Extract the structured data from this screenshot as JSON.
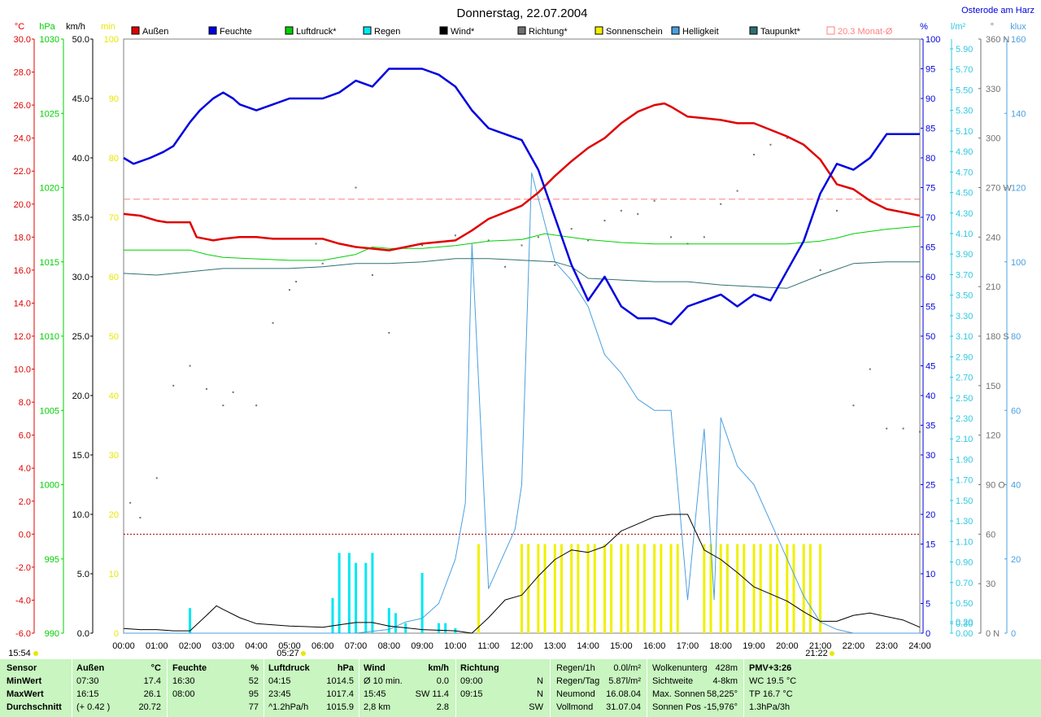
{
  "header": {
    "title": "Donnerstag, 22.07.2004",
    "location": "Osterode am Harz"
  },
  "units": {
    "temp": "°C",
    "press": "hPa",
    "wind": "km/h",
    "sun": "min",
    "hum": "%",
    "rain": "l/m²",
    "dir": "°",
    "lux": "klux"
  },
  "legend": [
    {
      "label": "Außen",
      "color": "#e00000"
    },
    {
      "label": "Feuchte",
      "color": "#0000e0"
    },
    {
      "label": "Luftdruck*",
      "color": "#00d000"
    },
    {
      "label": "Regen",
      "color": "#00e8f0"
    },
    {
      "label": "Wind*",
      "color": "#000000"
    },
    {
      "label": "Richtung*",
      "color": "#707070"
    },
    {
      "label": "Sonnenschein",
      "color": "#f0f000"
    },
    {
      "label": "Helligkeit",
      "color": "#4aa0e0"
    },
    {
      "label": "Taupunkt*",
      "color": "#307070"
    },
    {
      "label": "20.3 Monat-Ø",
      "color": "#ff8080"
    }
  ],
  "axes": {
    "temp_ticks": [
      "30.0",
      "28.0",
      "26.0",
      "24.0",
      "22.0",
      "20.0",
      "18.0",
      "16.0",
      "14.0",
      "12.0",
      "10.0",
      "8.0",
      "6.0",
      "4.0",
      "2.0",
      "0.0",
      "-2.0",
      "-4.0",
      "-6.0"
    ],
    "press_ticks": [
      "1030",
      "1025",
      "1020",
      "1015",
      "1010",
      "1005",
      "1000",
      "995",
      "990"
    ],
    "wind_ticks": [
      "50.0",
      "45.0",
      "40.0",
      "35.0",
      "30.0",
      "25.0",
      "20.0",
      "15.0",
      "10.0",
      "5.0",
      "0.0"
    ],
    "sun_ticks": [
      "100",
      "90",
      "80",
      "70",
      "60",
      "50",
      "40",
      "30",
      "20",
      "10",
      "0"
    ],
    "hum_ticks": [
      "100",
      "95",
      "90",
      "85",
      "80",
      "75",
      "70",
      "65",
      "60",
      "55",
      "50",
      "45",
      "40",
      "35",
      "30",
      "25",
      "20",
      "15",
      "10",
      "5",
      "0"
    ],
    "rain_ticks": [
      "5.90",
      "5.70",
      "5.50",
      "5.30",
      "5.10",
      "4.90",
      "4.70",
      "4.50",
      "4.30",
      "4.10",
      "3.90",
      "3.70",
      "3.50",
      "3.30",
      "3.10",
      "2.90",
      "2.70",
      "2.50",
      "2.30",
      "2.10",
      "1.90",
      "1.70",
      "1.50",
      "1.30",
      "1.10",
      "0.90",
      "0.70",
      "0.50",
      "0.30",
      "0.20",
      "0.00"
    ],
    "dir_ticks": [
      "360 N",
      "330",
      "300",
      "270 W",
      "240",
      "210",
      "180 S",
      "150",
      "120",
      "90 O",
      "60",
      "30",
      "0 N"
    ],
    "lux_ticks": [
      "160",
      "140",
      "120",
      "100",
      "80",
      "60",
      "40",
      "20",
      "0"
    ],
    "time_ticks": [
      "00:00",
      "01:00",
      "02:00",
      "03:00",
      "04:00",
      "05:00",
      "06:00",
      "07:00",
      "08:00",
      "09:00",
      "10:00",
      "11:00",
      "12:00",
      "13:00",
      "14:00",
      "15:00",
      "16:00",
      "17:00",
      "18:00",
      "19:00",
      "20:00",
      "21:00",
      "22:00",
      "23:00",
      "24:00"
    ]
  },
  "markers": {
    "sunrise": "05:27",
    "sunset": "21:22",
    "now": "15:54"
  },
  "chart_data": {
    "type": "line",
    "title": "Donnerstag, 22.07.2004",
    "x_unit": "hours",
    "monthly_average_temp": 20.3,
    "series": [
      {
        "name": "Außen",
        "unit": "°C",
        "x": [
          0,
          0.5,
          1,
          1.3,
          2,
          2.2,
          2.7,
          3,
          3.5,
          4,
          4.5,
          5,
          6,
          6.5,
          7,
          7.5,
          8,
          8.5,
          9,
          9.5,
          10,
          10.5,
          11,
          11.5,
          12,
          12.5,
          13,
          13.5,
          14,
          14.5,
          15,
          15.5,
          16,
          16.3,
          16.5,
          17,
          17.5,
          18,
          18.5,
          19,
          19.5,
          20,
          20.5,
          21,
          21.5,
          22,
          22.5,
          23,
          23.5,
          24
        ],
        "y": [
          19.4,
          19.3,
          19.0,
          18.9,
          18.9,
          18.0,
          17.8,
          17.9,
          18.0,
          18.0,
          17.9,
          17.9,
          17.9,
          17.6,
          17.4,
          17.3,
          17.2,
          17.4,
          17.6,
          17.7,
          17.8,
          18.4,
          19.1,
          19.5,
          19.9,
          20.7,
          21.7,
          22.6,
          23.4,
          24.0,
          24.9,
          25.6,
          26.0,
          26.1,
          25.9,
          25.3,
          25.2,
          25.1,
          24.9,
          24.9,
          24.5,
          24.1,
          23.6,
          22.7,
          21.2,
          20.9,
          20.2,
          19.7,
          19.5,
          19.3
        ]
      },
      {
        "name": "Feuchte",
        "unit": "%",
        "x": [
          0,
          0.3,
          0.8,
          1.2,
          1.5,
          2,
          2.3,
          2.7,
          3,
          3.3,
          3.5,
          4,
          4.5,
          5,
          5.5,
          6,
          6.5,
          7,
          7.5,
          8,
          8.5,
          9,
          9.5,
          10,
          10.5,
          11,
          11.5,
          12,
          12.5,
          13,
          13.5,
          14,
          14.5,
          15,
          15.5,
          16,
          16.5,
          17,
          17.5,
          18,
          18.5,
          19,
          19.5,
          20,
          20.5,
          21,
          21.5,
          22,
          22.5,
          23,
          23.5,
          24
        ],
        "y": [
          80,
          79,
          80,
          81,
          82,
          86,
          88,
          90,
          91,
          90,
          89,
          88,
          89,
          90,
          90,
          90,
          91,
          93,
          92,
          95,
          95,
          95,
          94,
          92,
          88,
          85,
          84,
          83,
          78,
          70,
          62,
          56,
          60,
          55,
          53,
          53,
          52,
          55,
          56,
          57,
          55,
          57,
          56,
          61,
          66,
          74,
          79,
          78,
          80,
          84,
          84,
          84
        ]
      },
      {
        "name": "Luftdruck*",
        "unit": "hPa",
        "x": [
          0,
          1,
          2,
          2.5,
          3,
          4,
          5,
          6,
          7,
          7.5,
          8,
          9,
          10,
          11,
          12,
          12.7,
          13,
          14,
          15,
          16,
          17,
          18,
          19,
          20,
          21,
          21.5,
          22,
          23,
          24
        ],
        "y": [
          1015.8,
          1015.8,
          1015.8,
          1015.5,
          1015.3,
          1015.2,
          1015.1,
          1015.1,
          1015.5,
          1016.0,
          1015.9,
          1015.9,
          1016.1,
          1016.4,
          1016.5,
          1016.9,
          1016.8,
          1016.5,
          1016.3,
          1016.2,
          1016.2,
          1016.2,
          1016.2,
          1016.2,
          1016.4,
          1016.6,
          1016.9,
          1017.2,
          1017.4
        ]
      },
      {
        "name": "Taupunkt*",
        "unit": "°C",
        "x": [
          0,
          1,
          2,
          3,
          4,
          5,
          6,
          7,
          8,
          9,
          10,
          11,
          12,
          13,
          13.5,
          14,
          15,
          16,
          17,
          18,
          19,
          20,
          21,
          22,
          23,
          24
        ],
        "y": [
          15.8,
          15.7,
          15.9,
          16.1,
          16.1,
          16.1,
          16.2,
          16.4,
          16.4,
          16.5,
          16.7,
          16.7,
          16.6,
          16.5,
          16.2,
          15.5,
          15.4,
          15.3,
          15.3,
          15.1,
          15.0,
          14.9,
          15.7,
          16.4,
          16.5,
          16.5
        ]
      },
      {
        "name": "Wind*",
        "unit": "km/h",
        "x": [
          0,
          0.5,
          1,
          1.5,
          2,
          2.5,
          2.8,
          3,
          3.5,
          4,
          5,
          6,
          6.5,
          7,
          7.5,
          8,
          9,
          10,
          10.5,
          11,
          11.5,
          12,
          12.5,
          13,
          13.5,
          14,
          14.5,
          15,
          15.5,
          16,
          16.5,
          17,
          17.5,
          18,
          18.5,
          19,
          19.5,
          20,
          20.5,
          21,
          21.5,
          22,
          22.5,
          23,
          23.5,
          24
        ],
        "y": [
          0.4,
          0.3,
          0.3,
          0.2,
          0.2,
          1.5,
          2.3,
          2.0,
          1.3,
          0.8,
          0.6,
          0.5,
          0.7,
          0.9,
          0.9,
          0.6,
          0.3,
          0.2,
          0.0,
          1.3,
          2.8,
          3.2,
          4.8,
          6.2,
          7.0,
          6.8,
          7.3,
          8.6,
          9.2,
          9.8,
          10.0,
          10.0,
          7.0,
          6.2,
          5.1,
          3.9,
          3.3,
          2.7,
          1.8,
          1.0,
          1.0,
          1.5,
          1.7,
          1.4,
          1.1,
          0.5
        ]
      },
      {
        "name": "Helligkeit",
        "unit": "klux",
        "x": [
          0,
          1,
          2,
          3,
          4,
          5,
          6,
          7,
          8,
          8.5,
          9,
          9.5,
          10,
          10.3,
          10.5,
          11,
          11.3,
          11.8,
          12,
          12.3,
          13,
          13.5,
          14,
          14.5,
          15,
          15.5,
          16,
          16.5,
          17,
          17.5,
          17.8,
          18,
          18.5,
          19,
          19.5,
          20,
          20.5,
          21,
          21.5,
          22,
          23,
          24
        ],
        "y": [
          0,
          0,
          0,
          0,
          0,
          0,
          0,
          0,
          1,
          3,
          4,
          8,
          20,
          35,
          105,
          12,
          18,
          28,
          40,
          124,
          100,
          95,
          88,
          75,
          70,
          63,
          60,
          60,
          9,
          55,
          9,
          58,
          45,
          40,
          30,
          20,
          10,
          3,
          1,
          0,
          0,
          0
        ]
      },
      {
        "name": "Regen",
        "unit": "l/m²",
        "x": [
          2,
          6.3,
          6.5,
          6.8,
          7,
          7.3,
          7.5,
          8,
          8.2,
          8.5,
          9,
          9.5,
          9.7,
          10
        ],
        "y": [
          0.25,
          0.35,
          0.8,
          0.8,
          0.7,
          0.7,
          0.8,
          0.25,
          0.2,
          0.1,
          0.6,
          0.1,
          0.1,
          0.05
        ]
      },
      {
        "name": "Richtung*",
        "unit": "°",
        "x": [
          0.2,
          0.5,
          1,
          1.5,
          2,
          2.5,
          3,
          3.3,
          4,
          4.5,
          5,
          5.2,
          5.8,
          6,
          7,
          7.5,
          8,
          9,
          10,
          11,
          11.5,
          12,
          12.5,
          13,
          13.5,
          14,
          14.5,
          15,
          15.5,
          16,
          16.5,
          17,
          17.5,
          18,
          18.5,
          19,
          19.5,
          20,
          21,
          21.5,
          22,
          22.5,
          23,
          23.5,
          24
        ],
        "y": [
          79,
          70,
          94,
          150,
          162,
          148,
          138,
          146,
          138,
          188,
          208,
          213,
          236,
          224,
          270,
          217,
          182,
          235,
          241,
          238,
          222,
          235,
          240,
          223,
          245,
          238,
          250,
          256,
          254,
          262,
          240,
          236,
          240,
          260,
          268,
          290,
          296,
          300,
          220,
          256,
          138,
          160,
          124,
          124,
          122
        ]
      },
      {
        "name": "Sonnenschein",
        "unit": "min",
        "x": [
          10.7,
          12,
          12.2,
          12.5,
          12.7,
          13,
          13.2,
          13.5,
          13.7,
          14,
          14.2,
          14.5,
          14.7,
          15,
          15.2,
          15.5,
          15.7,
          16,
          16.2,
          16.5,
          16.7,
          17.5,
          17.7,
          18,
          18.2,
          18.5,
          18.7,
          19,
          19.2,
          19.5,
          19.7,
          20,
          20.2,
          20.5,
          20.7,
          21
        ],
        "y": [
          15,
          15,
          15,
          15,
          15,
          15,
          15,
          15,
          15,
          15,
          15,
          15,
          15,
          15,
          15,
          15,
          15,
          15,
          15,
          15,
          15,
          15,
          15,
          15,
          15,
          15,
          15,
          15,
          15,
          15,
          15,
          15,
          15,
          15,
          15,
          15
        ]
      }
    ]
  },
  "summary": {
    "sensor": {
      "title": "Sensor",
      "rows": [
        "MinWert",
        "MaxWert",
        "Durchschnitt"
      ]
    },
    "aussen": {
      "title": "Außen",
      "unit": "°C",
      "rows": [
        [
          "07:30",
          "17.4"
        ],
        [
          "16:15",
          "26.1"
        ],
        [
          "(+ 0.42 )",
          "20.72"
        ]
      ]
    },
    "feuchte": {
      "title": "Feuchte",
      "unit": "%",
      "rows": [
        [
          "16:30",
          "52"
        ],
        [
          "08:00",
          "95"
        ],
        [
          "",
          "77"
        ]
      ]
    },
    "luftdruck": {
      "title": "Luftdruck",
      "unit": "hPa",
      "rows": [
        [
          "04:15",
          "1014.5"
        ],
        [
          "23:45",
          "1017.4"
        ],
        [
          "^1.2hPa/h",
          "1015.9"
        ]
      ]
    },
    "wind": {
      "title": "Wind",
      "unit": "km/h",
      "rows": [
        [
          "Ø 10 min.",
          "0.0"
        ],
        [
          "15:45",
          "SW 11.4"
        ],
        [
          "2,8 km",
          "2.8"
        ]
      ]
    },
    "richtung": {
      "title": "Richtung",
      "rows": [
        [
          "09:00",
          "N"
        ],
        [
          "09:15",
          "N"
        ],
        [
          "",
          "SW"
        ]
      ]
    },
    "regen": {
      "rows": [
        [
          "Regen/1h",
          "0.0l/m²"
        ],
        [
          "Regen/Tag",
          "5.87l/m²"
        ],
        [
          "Neumond",
          "16.08.04"
        ],
        [
          "Vollmond",
          "31.07.04"
        ]
      ]
    },
    "wolken": {
      "rows": [
        [
          "Wolkenunterg",
          "428m"
        ],
        [
          "Sichtweite",
          "4-8km"
        ],
        [
          "Max. Sonnen",
          "58,225°"
        ],
        [
          "Sonnen Pos",
          "-15,976°"
        ]
      ]
    },
    "pmv": {
      "rows": [
        "PMV+3:26",
        "WC 19.5 °C",
        "TP 16.7 °C",
        "1.3hPa/3h"
      ]
    }
  }
}
